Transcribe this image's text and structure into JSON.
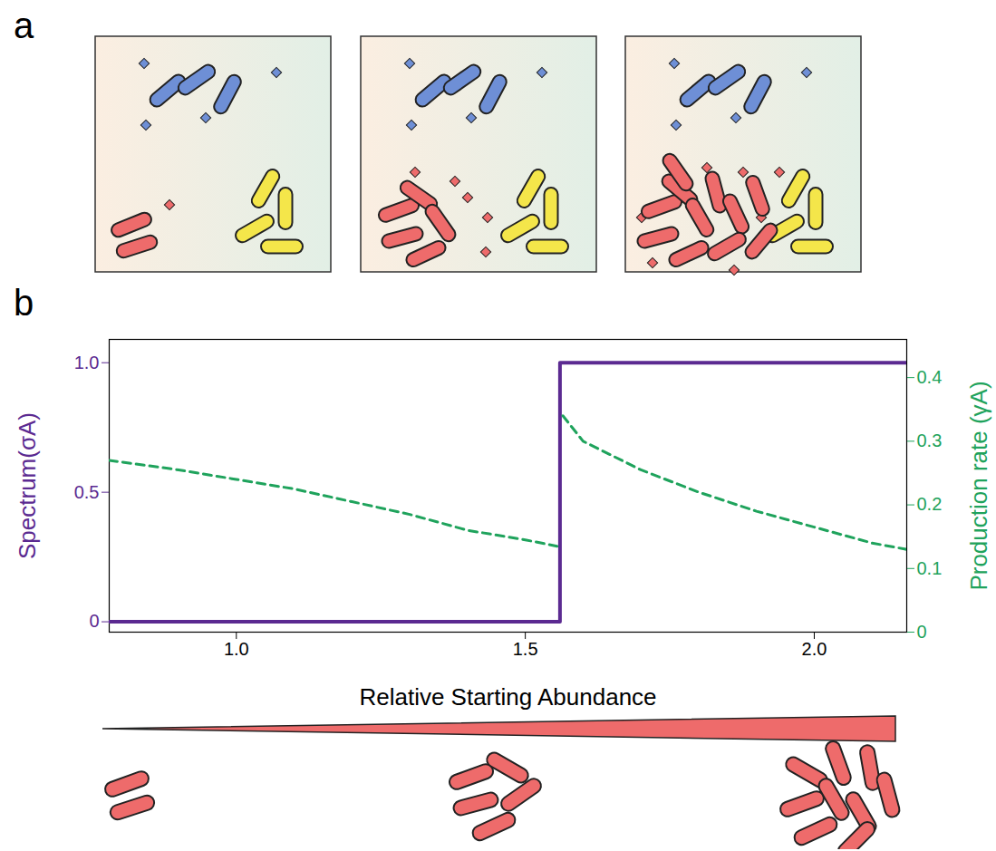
{
  "panel_labels": [
    "a",
    "b"
  ],
  "chart_data": {
    "type": "line",
    "xlabel": "Relative Starting Abundance",
    "ylabel": "Spectrum(σA)",
    "y2label": "Production rate (γA)",
    "xlim": [
      0.78,
      2.16
    ],
    "xticks": [
      {
        "value": 1,
        "label": "1.0"
      },
      {
        "value": 1.5,
        "label": "1.5"
      },
      {
        "value": 2,
        "label": "2.0"
      }
    ],
    "ylim": [
      -0.04,
      1.09
    ],
    "yticks": [
      0,
      0.5,
      {
        "value": 1,
        "label": "1.0"
      }
    ],
    "y2lim": [
      0,
      0.46
    ],
    "y2ticks": [
      0,
      0.1,
      0.2,
      0.3,
      0.4
    ],
    "grid": false,
    "series": [
      {
        "name": "Spectrum(σA)",
        "color": "#5b2a91",
        "line_style": "solid",
        "x": [
          0.78,
          1.56,
          1.56,
          2.16
        ],
        "values": [
          0,
          0,
          1,
          1
        ]
      },
      {
        "name": "Production rate (γA)",
        "color": "#1fa35c",
        "line_style": "dashed",
        "axis": "y2",
        "x": [
          0.78,
          0.9,
          1.0,
          1.1,
          1.2,
          1.3,
          1.4,
          1.5,
          1.555,
          1.56,
          1.565,
          1.6,
          1.7,
          1.8,
          1.9,
          2.0,
          2.1,
          2.16
        ],
        "values": [
          0.27,
          0.255,
          0.24,
          0.225,
          0.205,
          0.185,
          0.16,
          0.145,
          0.135,
          null,
          0.34,
          0.3,
          0.255,
          0.22,
          0.19,
          0.165,
          0.14,
          0.13
        ]
      }
    ]
  }
}
